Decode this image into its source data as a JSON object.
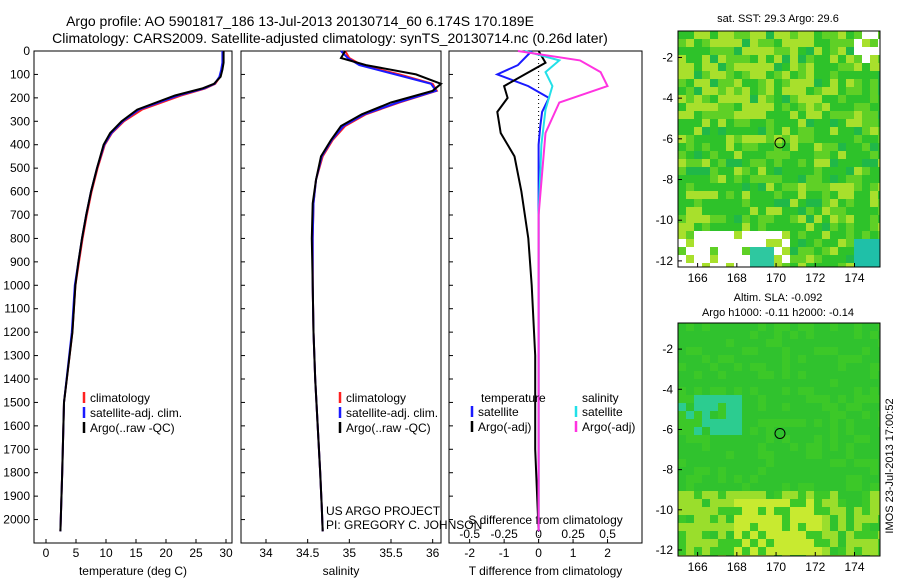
{
  "header": {
    "line1": "Argo profile: AO 5901817_186 13-Jul-2013 20130714_60 6.174S 170.189E",
    "line2": "Climatology: CARS2009. Satellite-adjusted climatology: synTS_20130714.nc (0.26d later)"
  },
  "colors": {
    "climatology": "#ff2020",
    "satellite": "#1a1aff",
    "argo": "#000000",
    "sat_diff": "#22e0e8",
    "argo_diff": "#ff33e0"
  },
  "chart_data": [
    {
      "type": "line",
      "name": "temperature-panel",
      "xlabel": "temperature (deg C)",
      "ylabel": "",
      "xlim": [
        -2,
        31
      ],
      "ylim": [
        2100,
        0
      ],
      "xticks": [
        "0",
        "5",
        "10",
        "15",
        "20",
        "25",
        "30"
      ],
      "yticks": [
        "0",
        "100",
        "200",
        "300",
        "400",
        "500",
        "600",
        "700",
        "800",
        "900",
        "1000",
        "1100",
        "1200",
        "1300",
        "1400",
        "1500",
        "1600",
        "1700",
        "1800",
        "1900",
        "2000"
      ],
      "legend": [
        "climatology",
        "satellite-adj. clim.",
        "Argo(..raw -QC)"
      ],
      "series": [
        {
          "name": "climatology",
          "x": [
            29.6,
            29.5,
            29.3,
            29.0,
            28.2,
            26.5,
            22.5,
            16.0,
            13.0,
            11.0,
            9.8,
            8.6,
            7.6,
            6.8,
            6.1,
            5.5,
            4.9,
            4.4,
            3.0,
            2.7,
            2.4
          ],
          "y": [
            0,
            50,
            80,
            110,
            140,
            160,
            190,
            250,
            300,
            350,
            400,
            500,
            600,
            700,
            800,
            900,
            1000,
            1200,
            1500,
            1800,
            2050
          ]
        },
        {
          "name": "satellite",
          "x": [
            29.4,
            29.4,
            29.2,
            28.9,
            28.1,
            26.3,
            22.0,
            15.5,
            12.8,
            10.9,
            9.7,
            8.5,
            7.5,
            6.7,
            6.0,
            5.4,
            4.8,
            4.3,
            3.0,
            2.7,
            2.4
          ],
          "y": [
            0,
            50,
            80,
            110,
            140,
            160,
            190,
            250,
            300,
            350,
            400,
            500,
            600,
            700,
            800,
            900,
            1000,
            1200,
            1500,
            1800,
            2050
          ]
        },
        {
          "name": "argo",
          "x": [
            29.6,
            29.6,
            29.4,
            29.1,
            28.0,
            26.0,
            21.5,
            15.2,
            12.6,
            10.7,
            9.6,
            8.5,
            7.5,
            6.7,
            6.0,
            5.4,
            4.9,
            4.4,
            3.0,
            2.7,
            2.4
          ],
          "y": [
            0,
            50,
            80,
            110,
            140,
            160,
            190,
            250,
            300,
            350,
            400,
            500,
            600,
            700,
            800,
            900,
            1000,
            1200,
            1500,
            1800,
            2050
          ]
        }
      ]
    },
    {
      "type": "line",
      "name": "salinity-panel",
      "xlabel": "salinity",
      "xlim": [
        33.7,
        36.1
      ],
      "ylim": [
        2100,
        0
      ],
      "xticks": [
        "34",
        "34.5",
        "35",
        "35.5",
        "36"
      ],
      "legend": [
        "climatology",
        "satellite-adj. clim.",
        "Argo(..raw -QC)"
      ],
      "annotation": [
        "US ARGO PROJECT",
        "PI: GREGORY C. JOHNSON"
      ],
      "series": [
        {
          "name": "climatology",
          "x": [
            34.95,
            35.0,
            35.15,
            35.6,
            36.0,
            36.05,
            35.6,
            35.2,
            34.95,
            34.8,
            34.68,
            34.6,
            34.57,
            34.56,
            34.56,
            34.57,
            34.59,
            34.62,
            34.65,
            34.67,
            34.68
          ],
          "y": [
            0,
            30,
            60,
            100,
            140,
            170,
            220,
            270,
            320,
            380,
            450,
            550,
            650,
            800,
            1000,
            1200,
            1400,
            1600,
            1800,
            1950,
            2050
          ]
        },
        {
          "name": "satellite",
          "x": [
            34.9,
            34.98,
            35.12,
            35.55,
            35.98,
            36.04,
            35.58,
            35.18,
            34.93,
            34.79,
            34.67,
            34.6,
            34.57,
            34.56,
            34.56,
            34.57,
            34.59,
            34.62,
            34.65,
            34.67,
            34.68
          ],
          "y": [
            0,
            30,
            60,
            100,
            140,
            170,
            220,
            270,
            320,
            380,
            450,
            550,
            650,
            800,
            1000,
            1200,
            1400,
            1600,
            1800,
            1950,
            2050
          ]
        },
        {
          "name": "argo",
          "x": [
            34.95,
            34.9,
            35.2,
            35.8,
            36.1,
            36.0,
            35.5,
            35.15,
            34.9,
            34.78,
            34.66,
            34.6,
            34.56,
            34.55,
            34.56,
            34.57,
            34.59,
            34.62,
            34.65,
            34.67,
            34.68
          ],
          "y": [
            0,
            30,
            60,
            100,
            140,
            170,
            220,
            270,
            320,
            380,
            450,
            550,
            650,
            800,
            1000,
            1200,
            1400,
            1600,
            1800,
            1950,
            2050
          ]
        }
      ]
    },
    {
      "type": "line",
      "name": "difference-panel",
      "xlabel_bottom": "T difference from climatology",
      "xlabel_top": "S difference from climatology",
      "xlim": [
        -2.6,
        3.0
      ],
      "ylim": [
        2100,
        0
      ],
      "xticks": [
        "-2",
        "-1",
        "0",
        "1",
        "2"
      ],
      "xticks_s": [
        "-0.5",
        "-0.25",
        "0",
        "0.25",
        "0.5"
      ],
      "legend_headers": [
        "temperature",
        "salinity"
      ],
      "legend": [
        "satellite",
        "Argo(-adj)",
        "satellite",
        "Argo(-adj)"
      ],
      "series": [
        {
          "name": "T satellite",
          "x": [
            -0.2,
            -0.6,
            -1.2,
            -0.3,
            0.3,
            0.1,
            0.05,
            0.0,
            0.0,
            0.0,
            0.0,
            0.0
          ],
          "y": [
            0,
            60,
            100,
            150,
            200,
            260,
            320,
            400,
            500,
            700,
            1000,
            2050
          ]
        },
        {
          "name": "T Argo(-adj)",
          "x": [
            0.0,
            0.2,
            -0.4,
            -1.0,
            -0.9,
            -1.2,
            -1.1,
            -0.7,
            -0.5,
            -0.3,
            -0.2,
            -0.1,
            -0.1,
            0.0
          ],
          "y": [
            0,
            50,
            100,
            150,
            200,
            260,
            350,
            450,
            600,
            800,
            1000,
            1300,
            1700,
            2050
          ]
        },
        {
          "name": "S satellite",
          "x": [
            -0.1,
            0.15,
            0.05,
            0.1,
            0.05,
            0.02,
            0.0,
            0.0,
            0.0
          ],
          "y": [
            0,
            40,
            90,
            150,
            250,
            400,
            700,
            1200,
            2050
          ]
        },
        {
          "name": "S Argo(-adj)",
          "x": [
            -0.15,
            0.3,
            0.45,
            0.5,
            0.15,
            0.05,
            0.0,
            0.0,
            0.0
          ],
          "y": [
            0,
            40,
            90,
            150,
            220,
            350,
            700,
            1200,
            2050
          ]
        }
      ]
    },
    {
      "type": "heatmap",
      "name": "sst-map",
      "title": "sat. SST: 29.3 Argo: 29.6",
      "xlim": [
        165,
        175.3
      ],
      "ylim": [
        -12.3,
        -0.7
      ],
      "xticks": [
        "166",
        "168",
        "170",
        "172",
        "174"
      ],
      "yticks": [
        "-2",
        "-4",
        "-6",
        "-8",
        "-10",
        "-12"
      ],
      "marker": {
        "lon": 170.2,
        "lat": -6.2
      }
    },
    {
      "type": "heatmap",
      "name": "sla-map",
      "title_line1": "Altim. SLA: -0.092",
      "title_line2": "Argo h1000: -0.11 h2000: -0.14",
      "xlim": [
        165,
        175.3
      ],
      "ylim": [
        -12.3,
        -0.7
      ],
      "xticks": [
        "166",
        "168",
        "170",
        "172",
        "174"
      ],
      "yticks": [
        "-2",
        "-4",
        "-6",
        "-8",
        "-10",
        "-12"
      ],
      "marker": {
        "lon": 170.2,
        "lat": -6.2
      }
    }
  ],
  "footer": {
    "stamp": "IMOS 23-Jul-2013 17:00:52"
  }
}
